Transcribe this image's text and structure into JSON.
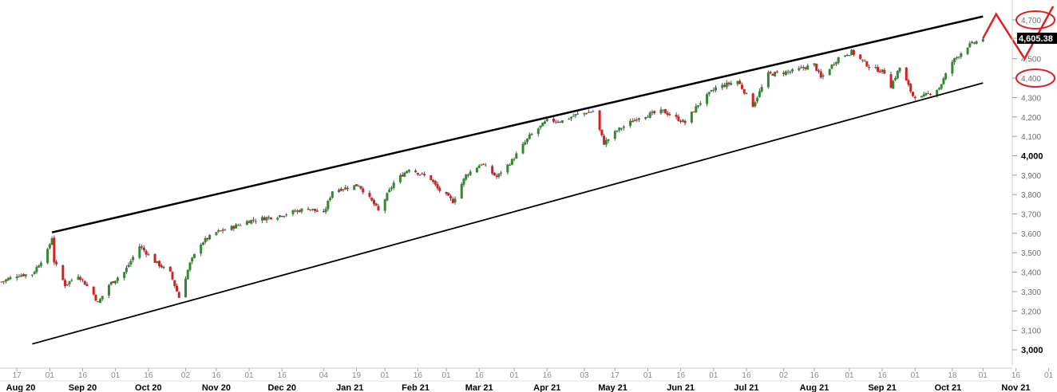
{
  "chart_data": {
    "type": "candlestick",
    "last_price_label": "4,605.38",
    "y_axis": {
      "ylim": [
        2950,
        4780
      ],
      "ticks": [
        {
          "value": 4700,
          "label": "4,700",
          "major": false
        },
        {
          "value": 4605.38,
          "label": "",
          "major": false
        },
        {
          "value": 4500,
          "label": "4,500",
          "major": false
        },
        {
          "value": 4400,
          "label": "4,400",
          "major": false
        },
        {
          "value": 4300,
          "label": "4,300",
          "major": false
        },
        {
          "value": 4200,
          "label": "4,200",
          "major": false
        },
        {
          "value": 4100,
          "label": "4,100",
          "major": false
        },
        {
          "value": 4000,
          "label": "4,000",
          "major": true
        },
        {
          "value": 3900,
          "label": "3,900",
          "major": false
        },
        {
          "value": 3800,
          "label": "3,800",
          "major": false
        },
        {
          "value": 3700,
          "label": "3,700",
          "major": false
        },
        {
          "value": 3600,
          "label": "3,600",
          "major": false
        },
        {
          "value": 3500,
          "label": "3,500",
          "major": false
        },
        {
          "value": 3400,
          "label": "3,400",
          "major": false
        },
        {
          "value": 3300,
          "label": "3,300",
          "major": false
        },
        {
          "value": 3200,
          "label": "3,200",
          "major": false
        },
        {
          "value": 3100,
          "label": "3,100",
          "major": false
        },
        {
          "value": 3000,
          "label": "3,000",
          "major": true
        }
      ]
    },
    "x_axis": {
      "start": "2020-08-10",
      "end": "2021-11-10",
      "day_ticks": [
        {
          "date": "2020-08-17",
          "label": "17"
        },
        {
          "date": "2020-09-01",
          "label": "01"
        },
        {
          "date": "2020-09-16",
          "label": "16"
        },
        {
          "date": "2020-10-01",
          "label": "01"
        },
        {
          "date": "2020-10-16",
          "label": "16"
        },
        {
          "date": "2020-11-02",
          "label": "02"
        },
        {
          "date": "2020-11-16",
          "label": "16"
        },
        {
          "date": "2020-12-01",
          "label": "01"
        },
        {
          "date": "2020-12-16",
          "label": "16"
        },
        {
          "date": "2021-01-04",
          "label": "04"
        },
        {
          "date": "2021-01-19",
          "label": "19"
        },
        {
          "date": "2021-02-01",
          "label": "01"
        },
        {
          "date": "2021-02-16",
          "label": "16"
        },
        {
          "date": "2021-03-01",
          "label": "01"
        },
        {
          "date": "2021-03-16",
          "label": "16"
        },
        {
          "date": "2021-04-01",
          "label": "01"
        },
        {
          "date": "2021-04-16",
          "label": "16"
        },
        {
          "date": "2021-05-03",
          "label": "03"
        },
        {
          "date": "2021-05-17",
          "label": "17"
        },
        {
          "date": "2021-06-01",
          "label": "01"
        },
        {
          "date": "2021-06-16",
          "label": "16"
        },
        {
          "date": "2021-07-01",
          "label": "01"
        },
        {
          "date": "2021-07-16",
          "label": "16"
        },
        {
          "date": "2021-08-02",
          "label": "02"
        },
        {
          "date": "2021-08-16",
          "label": "16"
        },
        {
          "date": "2021-09-01",
          "label": "01"
        },
        {
          "date": "2021-09-16",
          "label": "16"
        },
        {
          "date": "2021-10-01",
          "label": "01"
        },
        {
          "date": "2021-10-18",
          "label": "18"
        },
        {
          "date": "2021-11-01",
          "label": "01"
        },
        {
          "date": "2021-11-16",
          "label": "16"
        },
        {
          "date": "2021-12-01",
          "label": "01"
        }
      ],
      "month_labels": [
        {
          "date": "2020-08-17",
          "label": "Aug 20"
        },
        {
          "date": "2020-09-16",
          "label": "Sep 20"
        },
        {
          "date": "2020-10-16",
          "label": "Oct 20"
        },
        {
          "date": "2020-11-16",
          "label": "Nov 20"
        },
        {
          "date": "2020-12-16",
          "label": "Dec 20"
        },
        {
          "date": "2021-01-16",
          "label": "Jan 21"
        },
        {
          "date": "2021-02-15",
          "label": "Feb 21"
        },
        {
          "date": "2021-03-16",
          "label": "Mar 21"
        },
        {
          "date": "2021-04-16",
          "label": "Apr 21"
        },
        {
          "date": "2021-05-16",
          "label": "May 21"
        },
        {
          "date": "2021-06-16",
          "label": "Jun 21"
        },
        {
          "date": "2021-07-16",
          "label": "Jul 21"
        },
        {
          "date": "2021-08-16",
          "label": "Aug 21"
        },
        {
          "date": "2021-09-16",
          "label": "Sep 21"
        },
        {
          "date": "2021-10-16",
          "label": "Oct 21"
        },
        {
          "date": "2021-11-16",
          "label": "Nov 21"
        }
      ]
    },
    "price_path": [
      [
        "2020-08-10",
        3350
      ],
      [
        "2020-08-17",
        3385
      ],
      [
        "2020-08-24",
        3390
      ],
      [
        "2020-08-31",
        3510
      ],
      [
        "2020-09-02",
        3580
      ],
      [
        "2020-09-03",
        3455
      ],
      [
        "2020-09-08",
        3335
      ],
      [
        "2020-09-14",
        3385
      ],
      [
        "2020-09-21",
        3285
      ],
      [
        "2020-09-23",
        3240
      ],
      [
        "2020-09-28",
        3335
      ],
      [
        "2020-10-05",
        3400
      ],
      [
        "2020-10-12",
        3535
      ],
      [
        "2020-10-19",
        3455
      ],
      [
        "2020-10-26",
        3395
      ],
      [
        "2020-10-30",
        3270
      ],
      [
        "2020-11-04",
        3445
      ],
      [
        "2020-11-09",
        3550
      ],
      [
        "2020-11-16",
        3605
      ],
      [
        "2020-11-23",
        3630
      ],
      [
        "2020-12-01",
        3665
      ],
      [
        "2020-12-14",
        3690
      ],
      [
        "2020-12-28",
        3730
      ],
      [
        "2021-01-04",
        3700
      ],
      [
        "2021-01-08",
        3820
      ],
      [
        "2021-01-20",
        3850
      ],
      [
        "2021-01-27",
        3750
      ],
      [
        "2021-01-29",
        3715
      ],
      [
        "2021-02-05",
        3860
      ],
      [
        "2021-02-12",
        3935
      ],
      [
        "2021-02-22",
        3880
      ],
      [
        "2021-02-25",
        3830
      ],
      [
        "2021-03-04",
        3765
      ],
      [
        "2021-03-10",
        3900
      ],
      [
        "2021-03-17",
        3960
      ],
      [
        "2021-03-24",
        3890
      ],
      [
        "2021-03-31",
        3975
      ],
      [
        "2021-04-08",
        4100
      ],
      [
        "2021-04-16",
        4180
      ],
      [
        "2021-04-23",
        4180
      ],
      [
        "2021-04-29",
        4210
      ],
      [
        "2021-05-07",
        4230
      ],
      [
        "2021-05-12",
        4065
      ],
      [
        "2021-05-18",
        4130
      ],
      [
        "2021-05-28",
        4200
      ],
      [
        "2021-06-08",
        4230
      ],
      [
        "2021-06-18",
        4170
      ],
      [
        "2021-06-24",
        4265
      ],
      [
        "2021-07-02",
        4350
      ],
      [
        "2021-07-12",
        4385
      ],
      [
        "2021-07-19",
        4260
      ],
      [
        "2021-07-26",
        4420
      ],
      [
        "2021-08-06",
        4435
      ],
      [
        "2021-08-16",
        4470
      ],
      [
        "2021-08-19",
        4400
      ],
      [
        "2021-08-27",
        4505
      ],
      [
        "2021-09-02",
        4535
      ],
      [
        "2021-09-10",
        4460
      ],
      [
        "2021-09-17",
        4430
      ],
      [
        "2021-09-20",
        4360
      ],
      [
        "2021-09-24",
        4455
      ],
      [
        "2021-09-30",
        4310
      ],
      [
        "2021-10-04",
        4300
      ],
      [
        "2021-10-12",
        4350
      ],
      [
        "2021-10-18",
        4485
      ],
      [
        "2021-10-25",
        4565
      ],
      [
        "2021-11-01",
        4605.38
      ]
    ],
    "trendlines": [
      {
        "name": "upper-channel",
        "from": [
          "2020-09-02",
          3605
        ],
        "to": [
          "2021-11-01",
          4718
        ]
      },
      {
        "name": "lower-channel",
        "from": [
          "2020-08-24",
          3030
        ],
        "to": [
          "2021-11-01",
          4375
        ]
      }
    ],
    "projection_path": [
      [
        "2021-11-01",
        4605.38
      ],
      [
        "2021-11-07",
        4730
      ],
      [
        "2021-11-20",
        4500
      ],
      [
        "2021-12-03",
        4770
      ]
    ],
    "highlighted_levels": [
      4700,
      4400
    ],
    "colors": {
      "up": "#2e8b2e",
      "down": "#d42020",
      "wick": "#555555",
      "trendline": "#000000",
      "projection": "#e02020",
      "last_label_bg": "#000000"
    }
  }
}
